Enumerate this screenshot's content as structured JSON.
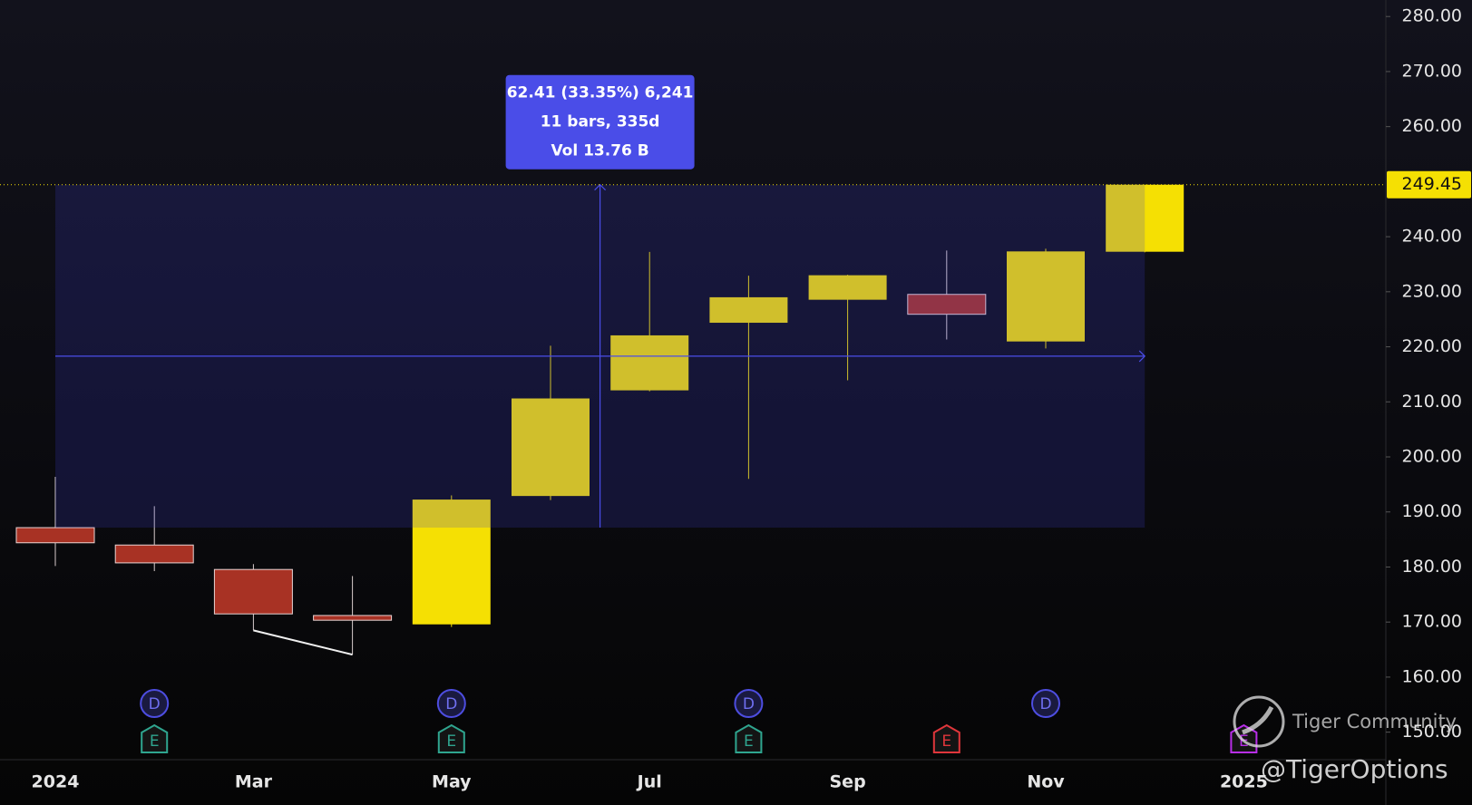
{
  "chart_data": {
    "type": "candlestick",
    "categories": [
      "2024",
      null,
      "Mar",
      null,
      "May",
      null,
      "Jul",
      null,
      "Sep",
      null,
      "Nov",
      null,
      "2025"
    ],
    "open": [
      187.15,
      183.99,
      179.55,
      171.19,
      169.58,
      192.9,
      212.09,
      224.37,
      228.55,
      229.52,
      220.97,
      237.27,
      null
    ],
    "high": [
      196.38,
      191.05,
      180.53,
      178.36,
      193,
      220.2,
      237.23,
      232.92,
      233.09,
      237.49,
      237.81,
      249.45,
      null
    ],
    "low": [
      180.17,
      179.25,
      168.49,
      164.08,
      169.11,
      192.15,
      211.92,
      196,
      213.92,
      221.33,
      219.71,
      237.16,
      null
    ],
    "close": [
      184.4,
      180.75,
      171.48,
      170.33,
      192.25,
      210.62,
      222.08,
      229,
      233,
      225.91,
      237.33,
      249.45,
      null
    ],
    "up_color": "#f5e003",
    "down_color": "#a83224",
    "ylim": [
      145,
      283
    ],
    "yticks": [
      {
        "value": 150,
        "label": "150.00"
      },
      {
        "value": 160,
        "label": "160.00"
      },
      {
        "value": 170,
        "label": "170.00"
      },
      {
        "value": 180,
        "label": "180.00"
      },
      {
        "value": 190,
        "label": "190.00"
      },
      {
        "value": 200,
        "label": "200.00"
      },
      {
        "value": 210,
        "label": "210.00"
      },
      {
        "value": 220,
        "label": "220.00"
      },
      {
        "value": 230,
        "label": "230.00"
      },
      {
        "value": 240,
        "label": "240.00"
      },
      {
        "value": 260,
        "label": "260.00"
      },
      {
        "value": 270,
        "label": "270.00"
      },
      {
        "value": 280,
        "label": "280.00"
      }
    ],
    "grid": false,
    "last_price": 249.45,
    "last_price_color": "#f5e003",
    "measure": {
      "lines": [
        "62.41 (33.35%) 6,241",
        "11 bars, 335d",
        "Vol 13.76 B"
      ],
      "color": "#4a4de8"
    },
    "dividend_markers": [
      null,
      "D",
      null,
      null,
      "D",
      null,
      null,
      "D",
      null,
      null,
      "D",
      null,
      null
    ],
    "earnings_markers": [
      null,
      "E",
      null,
      null,
      "E",
      null,
      null,
      "E",
      null,
      "E",
      null,
      null,
      "E"
    ],
    "earnings_colors": [
      null,
      "#2fa58f",
      null,
      null,
      "#2fa58f",
      null,
      null,
      "#2fa58f",
      null,
      "#e0363b",
      null,
      null,
      "#b82ee8"
    ],
    "watermark": {
      "brand": "Tiger Community",
      "handle": "@TigerOptions"
    }
  }
}
